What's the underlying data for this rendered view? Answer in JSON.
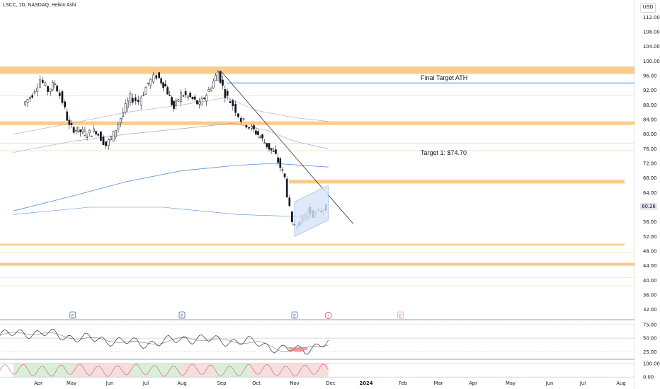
{
  "header": {
    "symbol_line": "LSCC, 1D, NASDAQ, Heikin Ashi",
    "currency": "USD"
  },
  "colors": {
    "up": "#131722",
    "down": "#131722",
    "zone": "#f7c27a",
    "blue_zone": "#aecbf0",
    "ma_blue": "#5b8fd6",
    "ma_gray": "#9598a1",
    "trend": "#131722",
    "channel": "#8fb2e8"
  },
  "chart_data": [
    {
      "type": "candlestick",
      "title": "LSCC, 1D, NASDAQ, Heikin Ashi",
      "xlabel": "",
      "ylabel": "",
      "ylim": [
        30,
        114
      ],
      "y_ticks": [
        "112.00",
        "108.00",
        "104.00",
        "100.00",
        "96.00",
        "92.00",
        "88.00",
        "84.00",
        "80.00",
        "76.00",
        "72.00",
        "68.00",
        "64.00",
        "60.00",
        "56.00",
        "52.00",
        "48.00",
        "44.00",
        "40.00",
        "36.00",
        "32.00"
      ],
      "x_ticks": [
        "Apr",
        "May",
        "Jun",
        "Jul",
        "Aug",
        "Sep",
        "Oct",
        "Nov",
        "Dec",
        "2024",
        "Feb",
        "Mar",
        "Apr",
        "May",
        "Jun",
        "Jul",
        "Aug"
      ],
      "price_points": [
        {
          "date": "2023-03-20",
          "value": 88
        },
        {
          "date": "2023-03-28",
          "value": 91
        },
        {
          "date": "2023-04-05",
          "value": 95
        },
        {
          "date": "2023-04-12",
          "value": 92
        },
        {
          "date": "2023-04-18",
          "value": 94
        },
        {
          "date": "2023-04-25",
          "value": 89
        },
        {
          "date": "2023-05-01",
          "value": 82
        },
        {
          "date": "2023-05-08",
          "value": 81
        },
        {
          "date": "2023-05-15",
          "value": 80
        },
        {
          "date": "2023-05-22",
          "value": 81
        },
        {
          "date": "2023-05-30",
          "value": 77
        },
        {
          "date": "2023-06-06",
          "value": 80
        },
        {
          "date": "2023-06-14",
          "value": 86
        },
        {
          "date": "2023-06-20",
          "value": 90
        },
        {
          "date": "2023-06-27",
          "value": 89
        },
        {
          "date": "2023-07-05",
          "value": 94
        },
        {
          "date": "2023-07-12",
          "value": 96
        },
        {
          "date": "2023-07-19",
          "value": 93
        },
        {
          "date": "2023-07-26",
          "value": 87
        },
        {
          "date": "2023-08-02",
          "value": 91
        },
        {
          "date": "2023-08-09",
          "value": 90
        },
        {
          "date": "2023-08-16",
          "value": 88
        },
        {
          "date": "2023-08-23",
          "value": 92
        },
        {
          "date": "2023-08-30",
          "value": 97
        },
        {
          "date": "2023-09-06",
          "value": 91
        },
        {
          "date": "2023-09-13",
          "value": 88
        },
        {
          "date": "2023-09-20",
          "value": 84
        },
        {
          "date": "2023-09-27",
          "value": 82
        },
        {
          "date": "2023-10-04",
          "value": 80
        },
        {
          "date": "2023-10-11",
          "value": 77
        },
        {
          "date": "2023-10-18",
          "value": 74
        },
        {
          "date": "2023-10-25",
          "value": 68
        },
        {
          "date": "2023-10-31",
          "value": 55
        },
        {
          "date": "2023-11-07",
          "value": 56
        },
        {
          "date": "2023-11-14",
          "value": 59
        },
        {
          "date": "2023-11-21",
          "value": 58
        },
        {
          "date": "2023-11-29",
          "value": 60.26
        }
      ],
      "last_price": "60.26",
      "horizontal_zones": [
        {
          "low": 96.5,
          "high": 98.5,
          "color": "zone"
        },
        {
          "low": 82.5,
          "high": 83.5,
          "color": "zone"
        },
        {
          "low": 66.5,
          "high": 67.5,
          "color": "zone"
        },
        {
          "low": 49.5,
          "high": 50.0,
          "color": "zone"
        },
        {
          "low": 44.0,
          "high": 44.8,
          "color": "zone"
        },
        {
          "low": 93.7,
          "high": 94.2,
          "color": "blue_zone"
        }
      ],
      "annotations": [
        {
          "text": "Final Target ATH",
          "x": "2023-11-25",
          "y": 95.2
        },
        {
          "text": "Target 1: $74.70",
          "x": "2023-11-25",
          "y": 74.7
        }
      ],
      "events": [
        {
          "date": "2023-05-02",
          "label": "E"
        },
        {
          "date": "2023-08-01",
          "label": "E"
        },
        {
          "date": "2023-10-31",
          "label": "E"
        },
        {
          "date": "2023-11-29",
          "label": "⚡"
        },
        {
          "date": "2024-01-29",
          "label": "E"
        }
      ]
    },
    {
      "type": "line",
      "title": "",
      "ylim": [
        15,
        80
      ],
      "y_ticks": [
        "75.00",
        "50.00",
        "25.00"
      ],
      "note_values": [
        55,
        60,
        58,
        52,
        48,
        45,
        40,
        43,
        50,
        47,
        44,
        42,
        28,
        30,
        40
      ]
    },
    {
      "type": "area",
      "title": "",
      "ylim": [
        -20,
        120
      ],
      "y_ticks": [
        "100.00",
        "0.00"
      ]
    }
  ]
}
